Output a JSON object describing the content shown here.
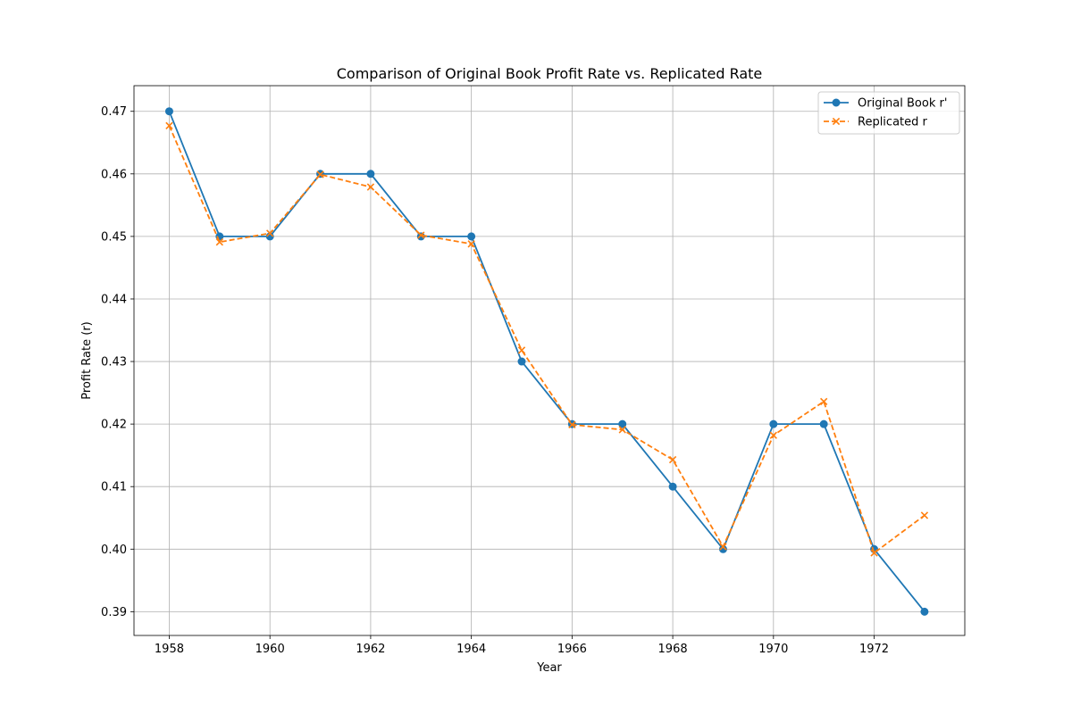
{
  "chart_data": {
    "type": "line",
    "title": "Comparison of Original Book Profit Rate vs. Replicated Rate",
    "xlabel": "Year",
    "ylabel": "Profit Rate (r)",
    "xlim": [
      1957.3,
      1973.8
    ],
    "ylim": [
      0.3862,
      0.4741
    ],
    "xticks": [
      1958,
      1960,
      1962,
      1964,
      1966,
      1968,
      1970,
      1972
    ],
    "yticks": [
      0.39,
      0.4,
      0.41,
      0.42,
      0.43,
      0.44,
      0.45,
      0.46,
      0.47
    ],
    "ytick_labels": [
      "0.39",
      "0.40",
      "0.41",
      "0.42",
      "0.43",
      "0.44",
      "0.45",
      "0.46",
      "0.47"
    ],
    "grid": true,
    "legend_position": "top-right",
    "x": [
      1958,
      1959,
      1960,
      1961,
      1962,
      1963,
      1964,
      1965,
      1966,
      1967,
      1968,
      1969,
      1970,
      1971,
      1972,
      1973
    ],
    "series": [
      {
        "name": "Original Book r'",
        "color": "#1f77b4",
        "marker": "circle",
        "linestyle": "solid",
        "values": [
          0.47,
          0.45,
          0.45,
          0.46,
          0.46,
          0.45,
          0.45,
          0.43,
          0.42,
          0.42,
          0.41,
          0.4,
          0.42,
          0.42,
          0.4,
          0.39
        ]
      },
      {
        "name": "Replicated r",
        "color": "#ff7f0e",
        "marker": "x",
        "linestyle": "dashed",
        "values": [
          0.4677,
          0.4491,
          0.4505,
          0.4599,
          0.4579,
          0.4502,
          0.4488,
          0.4318,
          0.4199,
          0.4191,
          0.4143,
          0.4004,
          0.4182,
          0.4236,
          0.3994,
          0.4054
        ]
      }
    ]
  }
}
